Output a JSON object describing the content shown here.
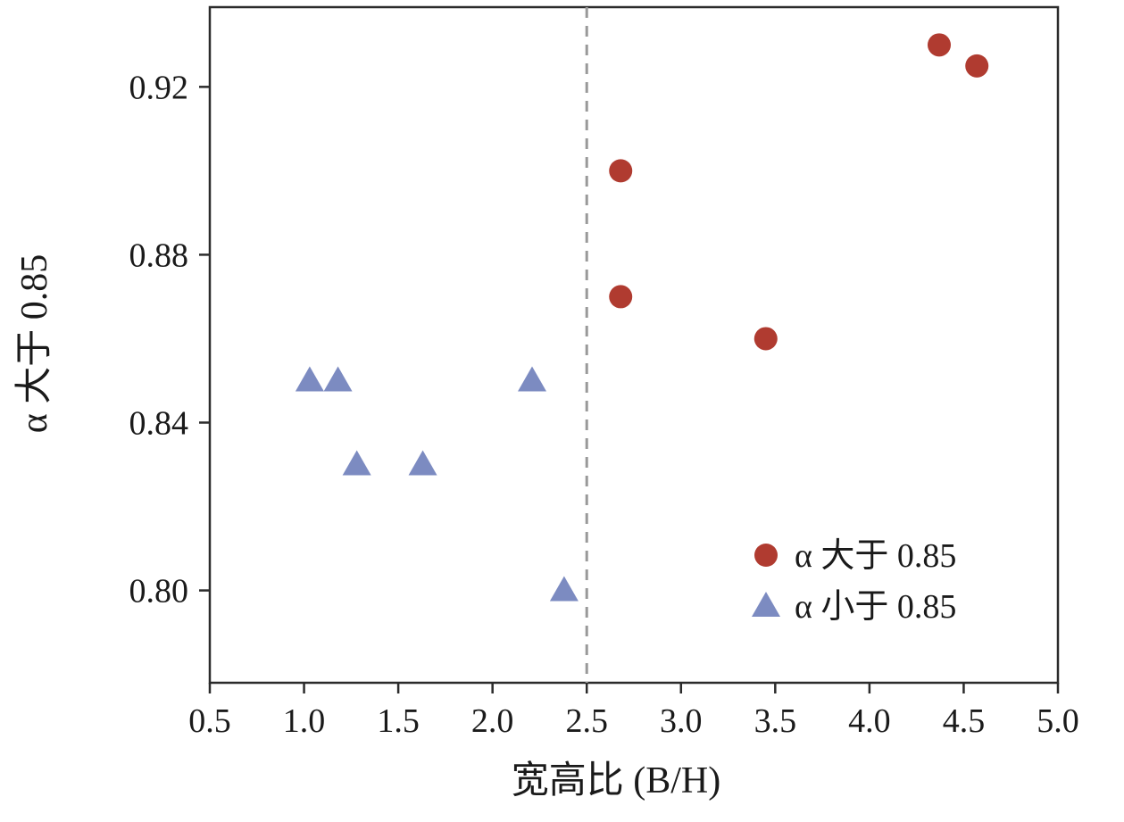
{
  "chart_data": {
    "type": "scatter",
    "title": "",
    "xlabel": "宽高比 (B/H)",
    "ylabel": "α 大于 0.85",
    "xlim": [
      0.5,
      5.0
    ],
    "ylim": [
      0.778,
      0.939
    ],
    "x_ticks": [
      0.5,
      1.0,
      1.5,
      2.0,
      2.5,
      3.0,
      3.5,
      4.0,
      4.5,
      5.0
    ],
    "x_tick_labels": [
      "0.5",
      "1.0",
      "1.5",
      "2.0",
      "2.5",
      "3.0",
      "3.5",
      "4.0",
      "4.5",
      "5.0"
    ],
    "y_ticks": [
      0.8,
      0.84,
      0.88,
      0.92
    ],
    "y_tick_labels": [
      "0.80",
      "0.84",
      "0.88",
      "0.92"
    ],
    "grid": false,
    "frame_color": "#2b2b2b",
    "threshold_line": {
      "x": 2.5,
      "style": "dashed",
      "color": "#999999"
    },
    "series": [
      {
        "name": "α 大于 0.85",
        "marker": "circle",
        "color": "#b03b30",
        "points": [
          {
            "x": 2.68,
            "y": 0.9
          },
          {
            "x": 2.68,
            "y": 0.87
          },
          {
            "x": 3.45,
            "y": 0.86
          },
          {
            "x": 4.37,
            "y": 0.93
          },
          {
            "x": 4.57,
            "y": 0.925
          }
        ]
      },
      {
        "name": "α 小于 0.85",
        "marker": "triangle",
        "color": "#7c8bc1",
        "points": [
          {
            "x": 1.03,
            "y": 0.85
          },
          {
            "x": 1.18,
            "y": 0.85
          },
          {
            "x": 1.28,
            "y": 0.83
          },
          {
            "x": 1.63,
            "y": 0.83
          },
          {
            "x": 2.21,
            "y": 0.85
          },
          {
            "x": 2.38,
            "y": 0.8
          }
        ]
      }
    ],
    "legend": {
      "position": "lower right",
      "entries": [
        "α 大于 0.85",
        "α 小于 0.85"
      ]
    }
  }
}
